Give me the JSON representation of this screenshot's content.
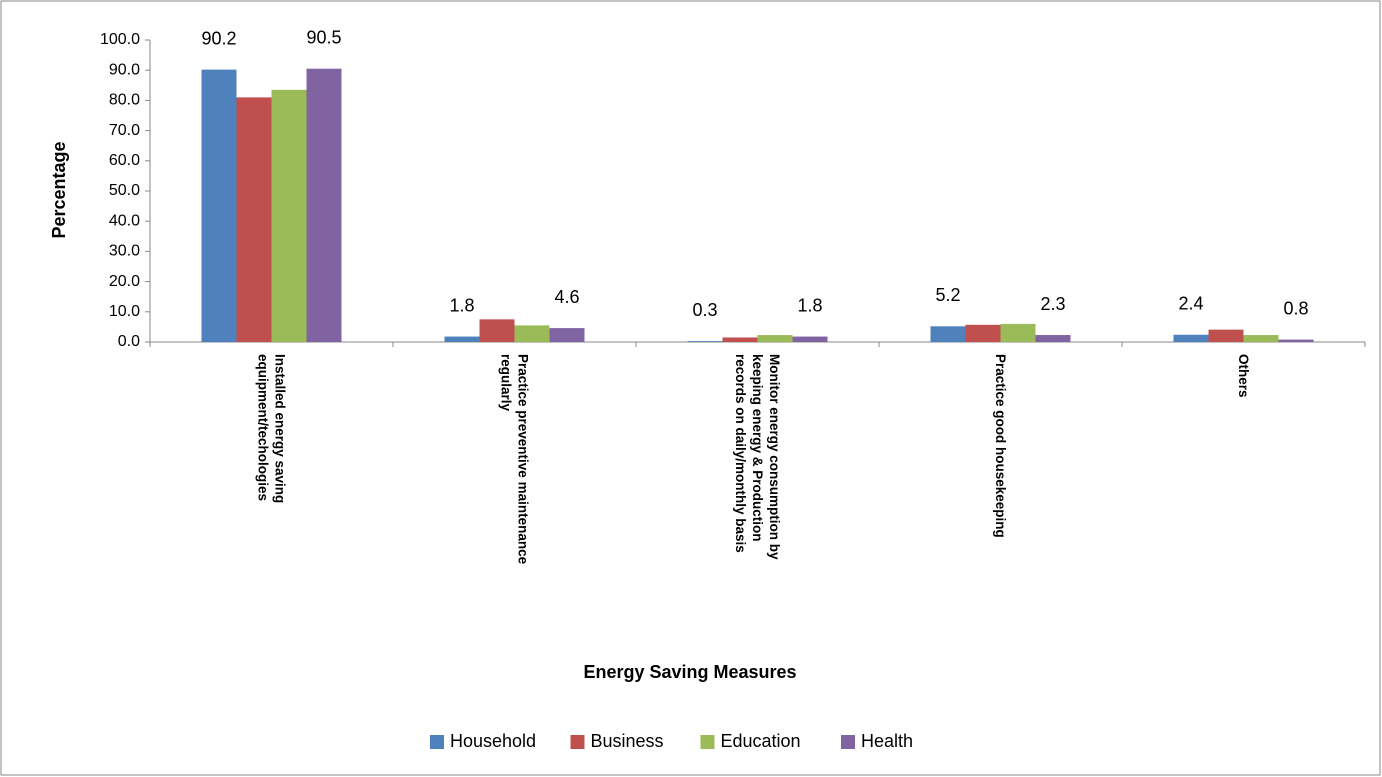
{
  "chart_data": {
    "type": "bar",
    "x_label": "Energy Saving Measures",
    "y_label": "Percentage",
    "categories": [
      "Installed energy saving\nequipment/techologies",
      "Practice preventive maintenance\nregularly",
      "Monitor energy consumption by\nkeeping energy & Production\nrecords on daily/monthly basis",
      "Practice good housekeeping",
      "Others"
    ],
    "series": [
      {
        "name": "Household",
        "color": "#4f81bd",
        "values": [
          90.2,
          1.8,
          0.3,
          5.2,
          2.4
        ],
        "show_labels": true
      },
      {
        "name": "Business",
        "color": "#c0504d",
        "values": [
          81.0,
          7.5,
          1.5,
          5.7,
          4.1
        ],
        "show_labels": false
      },
      {
        "name": "Education",
        "color": "#9bbb59",
        "values": [
          83.5,
          5.5,
          2.3,
          6.0,
          2.3
        ],
        "show_labels": false
      },
      {
        "name": "Health",
        "color": "#8064a2",
        "values": [
          90.5,
          4.6,
          1.8,
          2.3,
          0.8
        ],
        "show_labels": true
      }
    ],
    "ylim": [
      0,
      100
    ],
    "yticks": [
      {
        "value": 0,
        "label": "0.0"
      },
      {
        "value": 10,
        "label": "10.0"
      },
      {
        "value": 20,
        "label": "20.0"
      },
      {
        "value": 30,
        "label": "30.0"
      },
      {
        "value": 40,
        "label": "40.0"
      },
      {
        "value": 50,
        "label": "50.0"
      },
      {
        "value": 60,
        "label": "60.0"
      },
      {
        "value": 70,
        "label": "70.0"
      },
      {
        "value": 80,
        "label": "80.0"
      },
      {
        "value": 90,
        "label": "90.0"
      },
      {
        "value": 100,
        "label": "100.0"
      }
    ],
    "grid": false,
    "legend": "bottom"
  }
}
